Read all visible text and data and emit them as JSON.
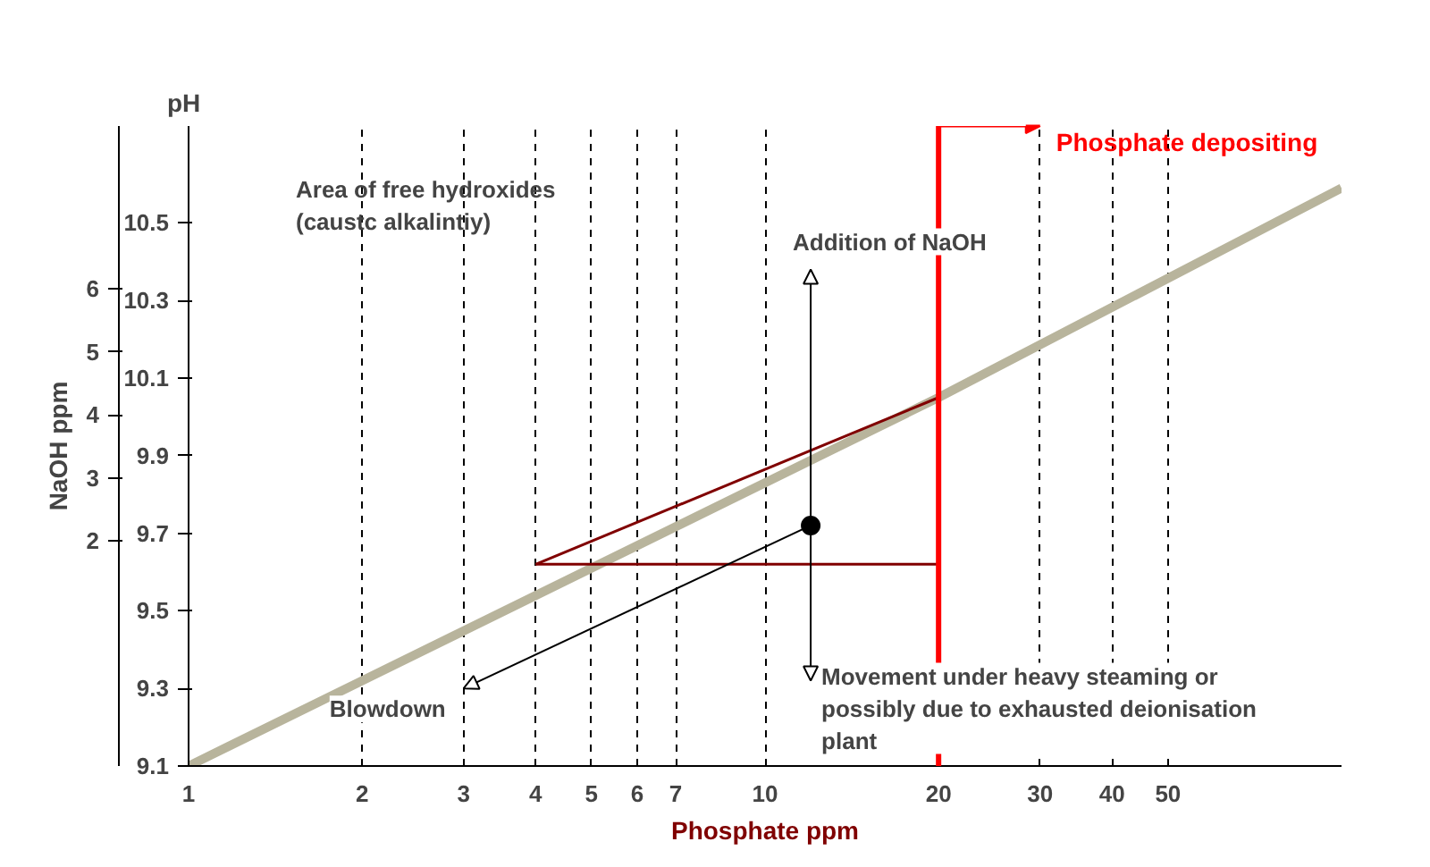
{
  "chart_data": {
    "type": "line",
    "xlabel": "Phosphate ppm",
    "ylabel": "pH",
    "y2label": "NaOH ppm",
    "log": "x",
    "xlim": [
      1,
      100
    ],
    "xticks": [
      1,
      2,
      3,
      4,
      5,
      6,
      7,
      10,
      20,
      30,
      40,
      50
    ],
    "ylim": [
      9.1,
      10.75
    ],
    "yticks": [
      9.1,
      9.3,
      9.5,
      9.7,
      9.9,
      10.1,
      10.3,
      10.5
    ],
    "y2lim": [
      -1.57,
      8.58
    ],
    "y2ticks": [
      2,
      3,
      4,
      5,
      6
    ],
    "grid": "x",
    "series": [
      {
        "color": "#b8b49c",
        "x": [
          1,
          20,
          100
        ],
        "values": [
          9.1,
          10.05,
          10.59
        ]
      },
      {
        "color": "#800000",
        "x": [
          4,
          20
        ],
        "values": [
          9.62,
          9.62
        ]
      },
      {
        "color": "#800000",
        "x": [
          4,
          20
        ],
        "values": [
          9.62,
          10.05
        ]
      },
      {
        "type": "scatter",
        "marker": "circle",
        "color": "#000000",
        "x": [
          12
        ],
        "values": [
          9.72
        ]
      }
    ],
    "ref_lines": [
      {
        "axis": "x",
        "value": 20,
        "label": "Phosphate depositing",
        "color": "#ff0000"
      }
    ],
    "annotations": [
      "Area of free hydroxides\n(caustc alkalintiy)",
      "Addition of NaOH",
      "Blowdown",
      "Movement under heavy steaming or\npossibly due to exhausted deionisation\nplant"
    ]
  }
}
